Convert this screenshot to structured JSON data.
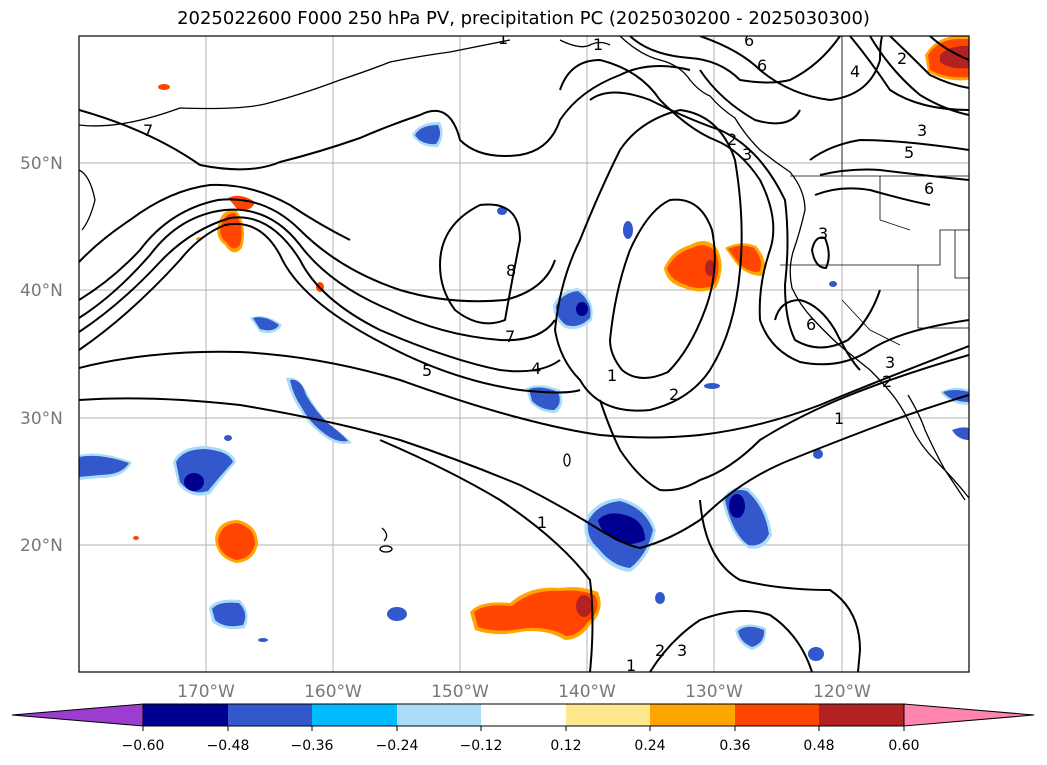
{
  "title": "2025022600 F000 250 hPa PV, precipitation PC (2025030200 - 2025030300)",
  "map": {
    "projection": "PlateCarree",
    "lon_range": [
      -180,
      -110
    ],
    "lat_range": [
      10,
      60
    ],
    "gridlines": true,
    "lat_labels": [
      "50°N",
      "40°N",
      "30°N",
      "20°N"
    ],
    "lon_labels": [
      "170°W",
      "160°W",
      "150°W",
      "140°W",
      "130°W",
      "120°W"
    ],
    "pv_contour_labels": [
      "7",
      "8",
      "7",
      "5",
      "4",
      "1",
      "2",
      "1",
      "1",
      "1",
      "2",
      "3",
      "6",
      "6",
      "4",
      "3",
      "5",
      "6",
      "2",
      "3",
      "6",
      "2",
      "3",
      "1",
      "1",
      "2",
      "3"
    ],
    "colors": {
      "contour": "#000000",
      "grid": "#b3b3b3",
      "coast": "#000000"
    }
  },
  "colorbar": {
    "extend": "both",
    "colors": [
      "#9a3dd0",
      "#000090",
      "#3358cc",
      "#00bbff",
      "#aadcf8",
      "#ffffff",
      "#fde88e",
      "#ffa500",
      "#ff4500",
      "#b22222",
      "#ff85b0"
    ],
    "ticks": [
      "−0.60",
      "−0.48",
      "−0.36",
      "−0.24",
      "−0.12",
      "0.12",
      "0.24",
      "0.36",
      "0.48",
      "0.60"
    ]
  }
}
